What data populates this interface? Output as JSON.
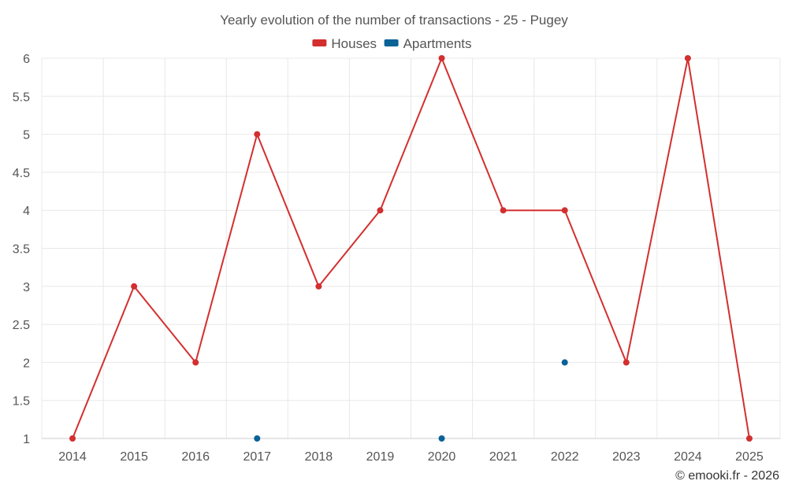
{
  "chart_data": {
    "type": "line",
    "title": "Yearly evolution of the number of transactions - 25 - Pugey",
    "categories": [
      "2014",
      "2015",
      "2016",
      "2017",
      "2018",
      "2019",
      "2020",
      "2021",
      "2022",
      "2023",
      "2024",
      "2025"
    ],
    "series": [
      {
        "name": "Houses",
        "color": "#d32f2f",
        "style": "line+markers",
        "values": [
          1,
          3,
          2,
          5,
          3,
          4,
          6,
          4,
          4,
          2,
          6,
          1
        ]
      },
      {
        "name": "Apartments",
        "color": "#0a6296",
        "style": "markers",
        "values": [
          null,
          null,
          null,
          1,
          null,
          null,
          1,
          null,
          2,
          null,
          null,
          null
        ]
      }
    ],
    "ylim": [
      1,
      6
    ],
    "yticks": [
      "1",
      "1.5",
      "2",
      "2.5",
      "3",
      "3.5",
      "4",
      "4.5",
      "5",
      "5.5",
      "6"
    ],
    "grid": true,
    "legend_position": "top-center",
    "credit": "© emooki.fr - 2026"
  }
}
